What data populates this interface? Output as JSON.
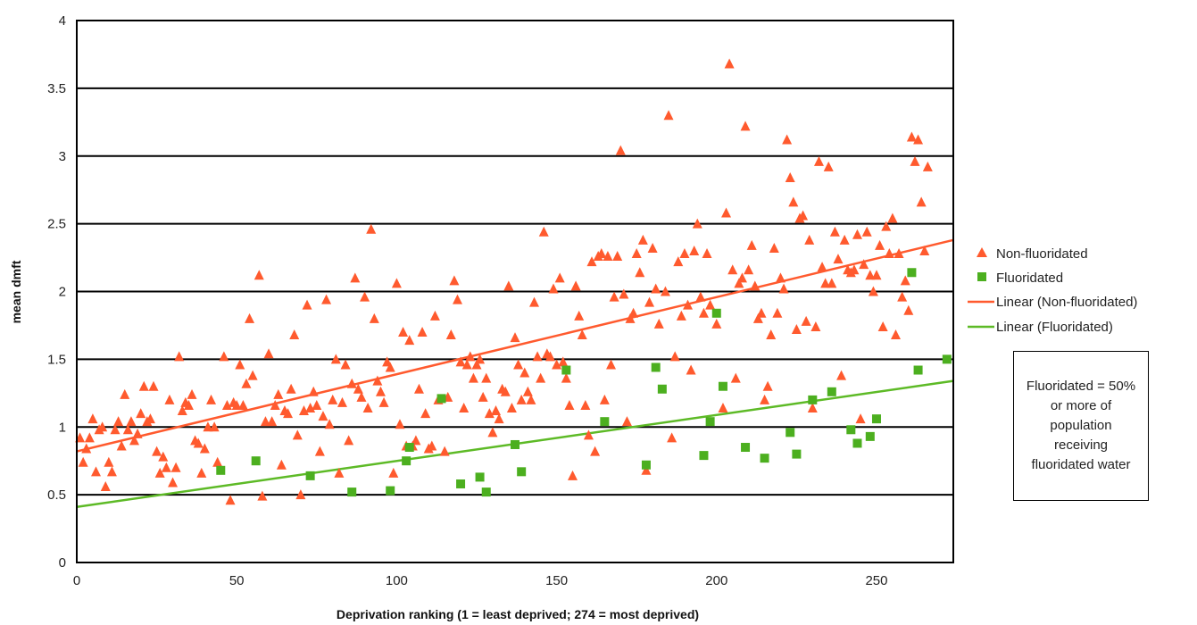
{
  "chart_data": {
    "type": "scatter",
    "xlabel": "Deprivation ranking (1 = least deprived; 274 = most deprived)",
    "ylabel": "mean dmft",
    "xlim": [
      0,
      274
    ],
    "ylim": [
      0,
      4
    ],
    "x_ticks": [
      "0",
      "50",
      "100",
      "150",
      "200",
      "250"
    ],
    "y_ticks": [
      "0",
      "0.5",
      "1",
      "1.5",
      "2",
      "2.5",
      "3",
      "3.5",
      "4"
    ],
    "grid": "horizontal",
    "legend_position": "right",
    "series": [
      {
        "name": "Non-fluoridated",
        "marker": "triangle",
        "color": "#FF5A2E",
        "points": [
          [
            1,
            0.92
          ],
          [
            2,
            0.74
          ],
          [
            3,
            0.84
          ],
          [
            4,
            0.92
          ],
          [
            5,
            1.06
          ],
          [
            6,
            0.67
          ],
          [
            7,
            0.98
          ],
          [
            8,
            1.0
          ],
          [
            9,
            0.56
          ],
          [
            10,
            0.74
          ],
          [
            11,
            0.67
          ],
          [
            12,
            0.98
          ],
          [
            13,
            1.04
          ],
          [
            14,
            0.86
          ],
          [
            15,
            1.24
          ],
          [
            16,
            0.98
          ],
          [
            17,
            1.04
          ],
          [
            18,
            0.9
          ],
          [
            19,
            0.95
          ],
          [
            20,
            1.1
          ],
          [
            21,
            1.3
          ],
          [
            22,
            1.04
          ],
          [
            23,
            1.06
          ],
          [
            24,
            1.3
          ],
          [
            25,
            0.82
          ],
          [
            26,
            0.66
          ],
          [
            27,
            0.78
          ],
          [
            28,
            0.7
          ],
          [
            29,
            1.2
          ],
          [
            30,
            0.59
          ],
          [
            31,
            0.7
          ],
          [
            32,
            1.52
          ],
          [
            33,
            1.12
          ],
          [
            34,
            1.18
          ],
          [
            35,
            1.16
          ],
          [
            36,
            1.24
          ],
          [
            37,
            0.9
          ],
          [
            38,
            0.88
          ],
          [
            39,
            0.66
          ],
          [
            40,
            0.84
          ],
          [
            41,
            1.0
          ],
          [
            42,
            1.2
          ],
          [
            43,
            1.0
          ],
          [
            44,
            0.74
          ],
          [
            46,
            1.52
          ],
          [
            47,
            1.16
          ],
          [
            48,
            0.46
          ],
          [
            49,
            1.18
          ],
          [
            50,
            1.16
          ],
          [
            51,
            1.46
          ],
          [
            52,
            1.16
          ],
          [
            53,
            1.32
          ],
          [
            54,
            1.8
          ],
          [
            55,
            1.38
          ],
          [
            57,
            2.12
          ],
          [
            58,
            0.49
          ],
          [
            59,
            1.04
          ],
          [
            60,
            1.54
          ],
          [
            61,
            1.04
          ],
          [
            62,
            1.16
          ],
          [
            63,
            1.24
          ],
          [
            64,
            0.72
          ],
          [
            65,
            1.12
          ],
          [
            66,
            1.1
          ],
          [
            67,
            1.28
          ],
          [
            68,
            1.68
          ],
          [
            69,
            0.94
          ],
          [
            70,
            0.5
          ],
          [
            71,
            1.12
          ],
          [
            72,
            1.9
          ],
          [
            73,
            1.14
          ],
          [
            74,
            1.26
          ],
          [
            75,
            1.16
          ],
          [
            76,
            0.82
          ],
          [
            77,
            1.08
          ],
          [
            78,
            1.94
          ],
          [
            79,
            1.02
          ],
          [
            80,
            1.2
          ],
          [
            81,
            1.5
          ],
          [
            82,
            0.66
          ],
          [
            83,
            1.18
          ],
          [
            84,
            1.46
          ],
          [
            85,
            0.9
          ],
          [
            86,
            1.32
          ],
          [
            87,
            2.1
          ],
          [
            88,
            1.28
          ],
          [
            89,
            1.22
          ],
          [
            90,
            1.96
          ],
          [
            91,
            1.14
          ],
          [
            92,
            2.46
          ],
          [
            93,
            1.8
          ],
          [
            94,
            1.34
          ],
          [
            95,
            1.26
          ],
          [
            96,
            1.18
          ],
          [
            97,
            1.48
          ],
          [
            98,
            1.44
          ],
          [
            99,
            0.66
          ],
          [
            100,
            2.06
          ],
          [
            101,
            1.02
          ],
          [
            102,
            1.7
          ],
          [
            103,
            0.86
          ],
          [
            104,
            1.64
          ],
          [
            105,
            0.86
          ],
          [
            106,
            0.9
          ],
          [
            107,
            1.28
          ],
          [
            108,
            1.7
          ],
          [
            109,
            1.1
          ],
          [
            110,
            0.84
          ],
          [
            111,
            0.86
          ],
          [
            112,
            1.82
          ],
          [
            113,
            1.2
          ],
          [
            115,
            0.82
          ],
          [
            116,
            1.22
          ],
          [
            117,
            1.68
          ],
          [
            118,
            2.08
          ],
          [
            119,
            1.94
          ],
          [
            120,
            1.48
          ],
          [
            121,
            1.14
          ],
          [
            122,
            1.46
          ],
          [
            123,
            1.52
          ],
          [
            124,
            1.36
          ],
          [
            125,
            1.46
          ],
          [
            126,
            1.5
          ],
          [
            127,
            1.22
          ],
          [
            128,
            1.36
          ],
          [
            129,
            1.1
          ],
          [
            130,
            0.96
          ],
          [
            131,
            1.12
          ],
          [
            132,
            1.06
          ],
          [
            133,
            1.28
          ],
          [
            134,
            1.26
          ],
          [
            135,
            2.04
          ],
          [
            136,
            1.14
          ],
          [
            137,
            1.66
          ],
          [
            138,
            1.46
          ],
          [
            139,
            1.2
          ],
          [
            140,
            1.4
          ],
          [
            141,
            1.26
          ],
          [
            142,
            1.2
          ],
          [
            143,
            1.92
          ],
          [
            144,
            1.52
          ],
          [
            145,
            1.36
          ],
          [
            146,
            2.44
          ],
          [
            147,
            1.54
          ],
          [
            148,
            1.52
          ],
          [
            149,
            2.02
          ],
          [
            150,
            1.46
          ],
          [
            151,
            2.1
          ],
          [
            152,
            1.48
          ],
          [
            153,
            1.36
          ],
          [
            154,
            1.16
          ],
          [
            155,
            0.64
          ],
          [
            156,
            2.04
          ],
          [
            157,
            1.82
          ],
          [
            158,
            1.68
          ],
          [
            159,
            1.16
          ],
          [
            160,
            0.94
          ],
          [
            161,
            2.22
          ],
          [
            162,
            0.82
          ],
          [
            163,
            2.26
          ],
          [
            164,
            2.28
          ],
          [
            165,
            1.2
          ],
          [
            166,
            2.26
          ],
          [
            167,
            1.46
          ],
          [
            168,
            1.96
          ],
          [
            169,
            2.26
          ],
          [
            170,
            3.04
          ],
          [
            171,
            1.98
          ],
          [
            172,
            1.04
          ],
          [
            173,
            1.8
          ],
          [
            174,
            1.84
          ],
          [
            175,
            2.28
          ],
          [
            176,
            2.14
          ],
          [
            177,
            2.38
          ],
          [
            178,
            0.68
          ],
          [
            179,
            1.92
          ],
          [
            180,
            2.32
          ],
          [
            181,
            2.02
          ],
          [
            182,
            1.76
          ],
          [
            184,
            2.0
          ],
          [
            185,
            3.3
          ],
          [
            186,
            0.92
          ],
          [
            187,
            1.52
          ],
          [
            188,
            2.22
          ],
          [
            189,
            1.82
          ],
          [
            190,
            2.28
          ],
          [
            191,
            1.9
          ],
          [
            192,
            1.42
          ],
          [
            193,
            2.3
          ],
          [
            194,
            2.5
          ],
          [
            195,
            1.96
          ],
          [
            196,
            1.84
          ],
          [
            197,
            2.28
          ],
          [
            198,
            1.9
          ],
          [
            200,
            1.76
          ],
          [
            202,
            1.14
          ],
          [
            203,
            2.58
          ],
          [
            204,
            3.68
          ],
          [
            205,
            2.16
          ],
          [
            206,
            1.36
          ],
          [
            207,
            2.06
          ],
          [
            208,
            2.1
          ],
          [
            209,
            3.22
          ],
          [
            210,
            2.16
          ],
          [
            211,
            2.34
          ],
          [
            212,
            2.04
          ],
          [
            213,
            1.8
          ],
          [
            214,
            1.84
          ],
          [
            215,
            1.2
          ],
          [
            216,
            1.3
          ],
          [
            217,
            1.68
          ],
          [
            218,
            2.32
          ],
          [
            219,
            1.84
          ],
          [
            220,
            2.1
          ],
          [
            221,
            2.02
          ],
          [
            222,
            3.12
          ],
          [
            223,
            2.84
          ],
          [
            224,
            2.66
          ],
          [
            225,
            1.72
          ],
          [
            226,
            2.54
          ],
          [
            227,
            2.56
          ],
          [
            228,
            1.78
          ],
          [
            229,
            2.38
          ],
          [
            230,
            1.14
          ],
          [
            231,
            1.74
          ],
          [
            232,
            2.96
          ],
          [
            233,
            2.18
          ],
          [
            234,
            2.06
          ],
          [
            235,
            2.92
          ],
          [
            236,
            2.06
          ],
          [
            237,
            2.44
          ],
          [
            238,
            2.24
          ],
          [
            239,
            1.38
          ],
          [
            240,
            2.38
          ],
          [
            241,
            2.16
          ],
          [
            242,
            2.14
          ],
          [
            243,
            2.16
          ],
          [
            244,
            2.42
          ],
          [
            245,
            1.06
          ],
          [
            246,
            2.2
          ],
          [
            247,
            2.44
          ],
          [
            248,
            2.12
          ],
          [
            249,
            2.0
          ],
          [
            250,
            2.12
          ],
          [
            251,
            2.34
          ],
          [
            252,
            1.74
          ],
          [
            253,
            2.48
          ],
          [
            254,
            2.28
          ],
          [
            255,
            2.54
          ],
          [
            256,
            1.68
          ],
          [
            257,
            2.28
          ],
          [
            258,
            1.96
          ],
          [
            259,
            2.08
          ],
          [
            260,
            1.86
          ],
          [
            261,
            3.14
          ],
          [
            262,
            2.96
          ],
          [
            263,
            3.12
          ],
          [
            264,
            2.66
          ],
          [
            265,
            2.3
          ],
          [
            266,
            2.92
          ]
        ]
      },
      {
        "name": "Fluoridated",
        "marker": "square",
        "color": "#4CAF1F",
        "points": [
          [
            45,
            0.68
          ],
          [
            56,
            0.75
          ],
          [
            73,
            0.64
          ],
          [
            86,
            0.52
          ],
          [
            98,
            0.53
          ],
          [
            103,
            0.75
          ],
          [
            104,
            0.85
          ],
          [
            114,
            1.21
          ],
          [
            120,
            0.58
          ],
          [
            126,
            0.63
          ],
          [
            128,
            0.52
          ],
          [
            137,
            0.87
          ],
          [
            139,
            0.67
          ],
          [
            153,
            1.42
          ],
          [
            165,
            1.04
          ],
          [
            178,
            0.72
          ],
          [
            181,
            1.44
          ],
          [
            183,
            1.28
          ],
          [
            196,
            0.79
          ],
          [
            198,
            1.04
          ],
          [
            200,
            1.84
          ],
          [
            202,
            1.3
          ],
          [
            209,
            0.85
          ],
          [
            215,
            0.77
          ],
          [
            223,
            0.96
          ],
          [
            225,
            0.8
          ],
          [
            230,
            1.2
          ],
          [
            236,
            1.26
          ],
          [
            242,
            0.98
          ],
          [
            244,
            0.88
          ],
          [
            248,
            0.93
          ],
          [
            250,
            1.06
          ],
          [
            261,
            2.14
          ],
          [
            263,
            1.42
          ],
          [
            272,
            1.5
          ]
        ]
      },
      {
        "name": "Linear (Non-fluoridated)",
        "type": "line",
        "color": "#FF5A2E",
        "x": [
          0,
          274
        ],
        "y": [
          0.82,
          2.38
        ]
      },
      {
        "name": "Linear (Fluoridated)",
        "type": "line",
        "color": "#5DBA26",
        "x": [
          0,
          274
        ],
        "y": [
          0.41,
          1.34
        ]
      }
    ]
  },
  "note": {
    "lines": [
      "Fluoridated = 50%",
      "or more of",
      "population",
      "receiving",
      "fluoridated water"
    ]
  }
}
